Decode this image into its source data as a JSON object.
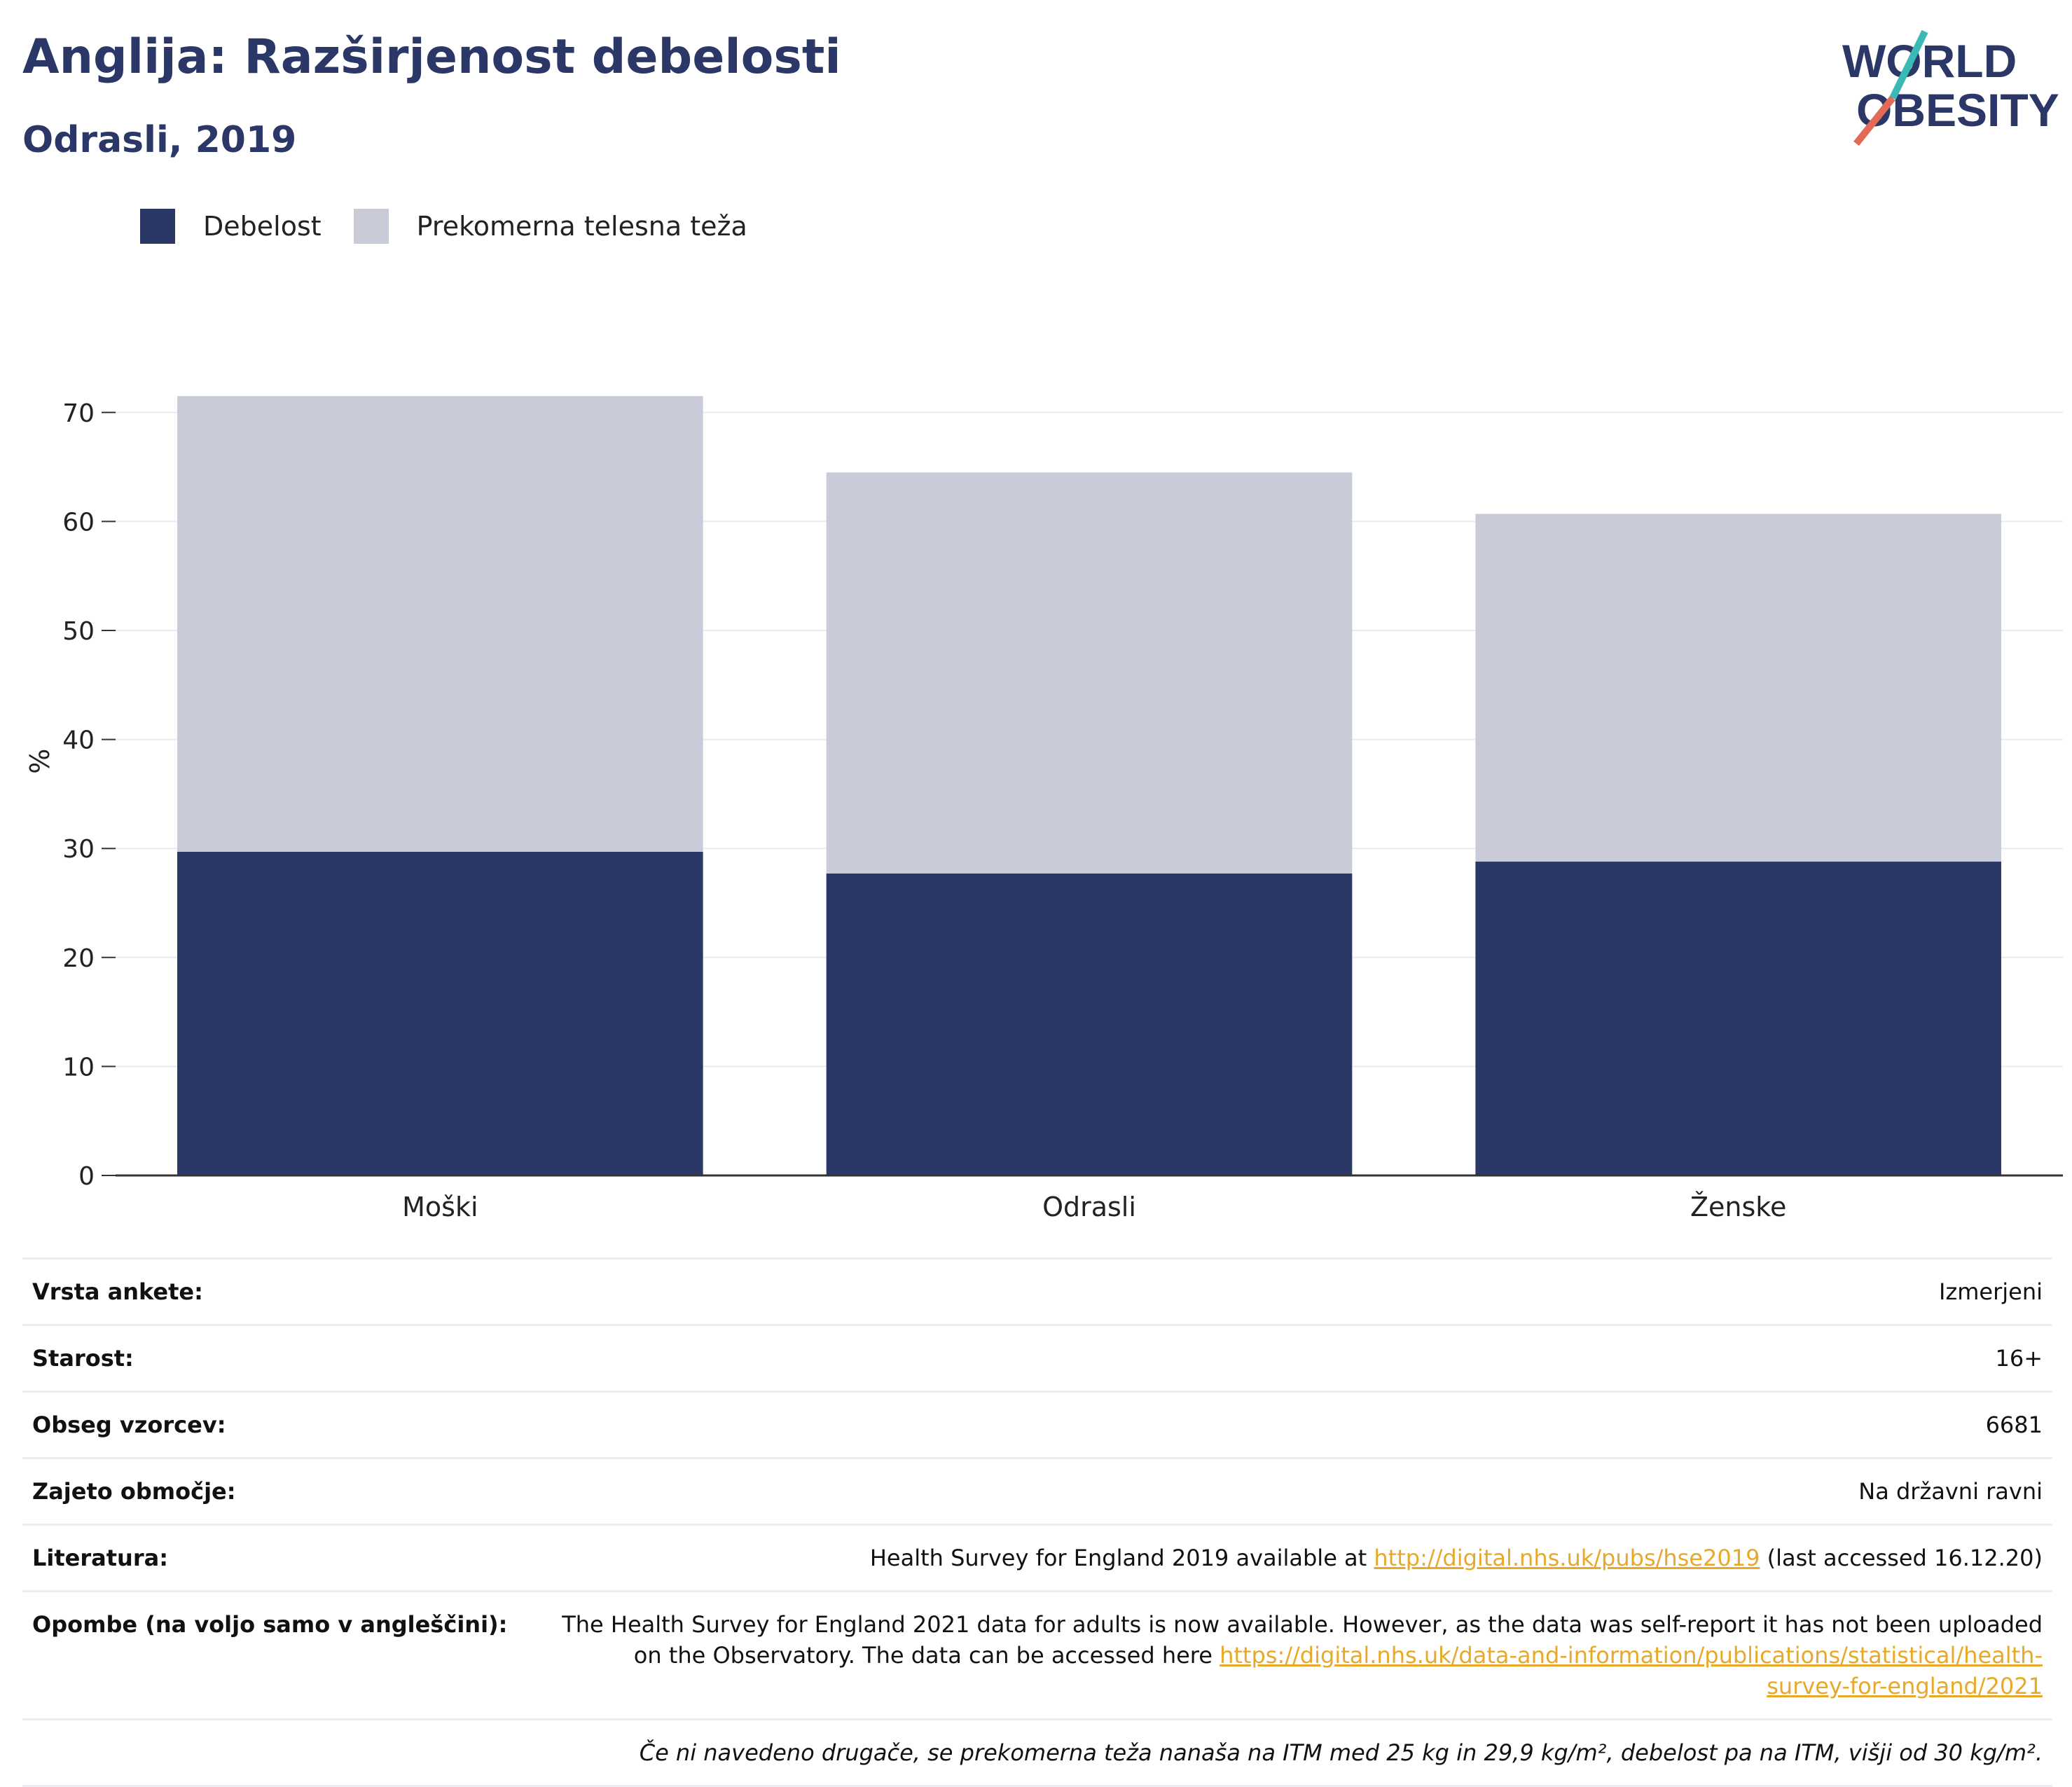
{
  "header": {
    "title": "Anglija: Razširjenost debelosti",
    "subtitle": "Odrasli, 2019"
  },
  "logo": {
    "line1": "WORLD",
    "line2": "OBESITY"
  },
  "colors": {
    "obesity": "#2b3765",
    "overweight": "#c9ccd8",
    "title": "#2b3766",
    "link": "#e8a92a"
  },
  "chart_data": {
    "type": "bar",
    "stacked": true,
    "categories": [
      "Moški",
      "Odrasli",
      "Ženske"
    ],
    "series": [
      {
        "name": "Debelost",
        "values": [
          29.7,
          27.7,
          28.8
        ]
      },
      {
        "name": "Prekomerna telesna teža",
        "values": [
          41.8,
          36.8,
          31.9
        ]
      }
    ],
    "ylabel": "%",
    "ylim": [
      0,
      72
    ],
    "yticks": [
      0,
      10,
      20,
      30,
      40,
      50,
      60,
      70
    ],
    "grid": true,
    "legend": "top-left"
  },
  "meta": {
    "rows": [
      {
        "key": "Vrsta ankete:",
        "value": "Izmerjeni"
      },
      {
        "key": "Starost:",
        "value": "16+"
      },
      {
        "key": "Obseg vzorcev:",
        "value": "6681"
      },
      {
        "key": "Zajeto območje:",
        "value": "Na državni ravni"
      }
    ],
    "literature": {
      "key": "Literatura:",
      "before": "Health Survey for England 2019 available at ",
      "link": "http://digital.nhs.uk/pubs/hse2019",
      "after": " (last accessed 16.12.20)"
    },
    "notes": {
      "key": "Opombe (na voljo samo v angleščini):",
      "text": "The Health Survey for England 2021 data for adults is now available. However, as the data was self-report it has not been uploaded on the Observatory. The data can be accessed here ",
      "link": "https://digital.nhs.uk/data-and-information/publications/statistical/health-survey-for-england/2021"
    },
    "footnote": "Če ni navedeno drugače, se prekomerna teža nanaša na ITM med 25 kg in 29,9 kg/m², debelost pa na ITM, višji od 30 kg/m²."
  }
}
